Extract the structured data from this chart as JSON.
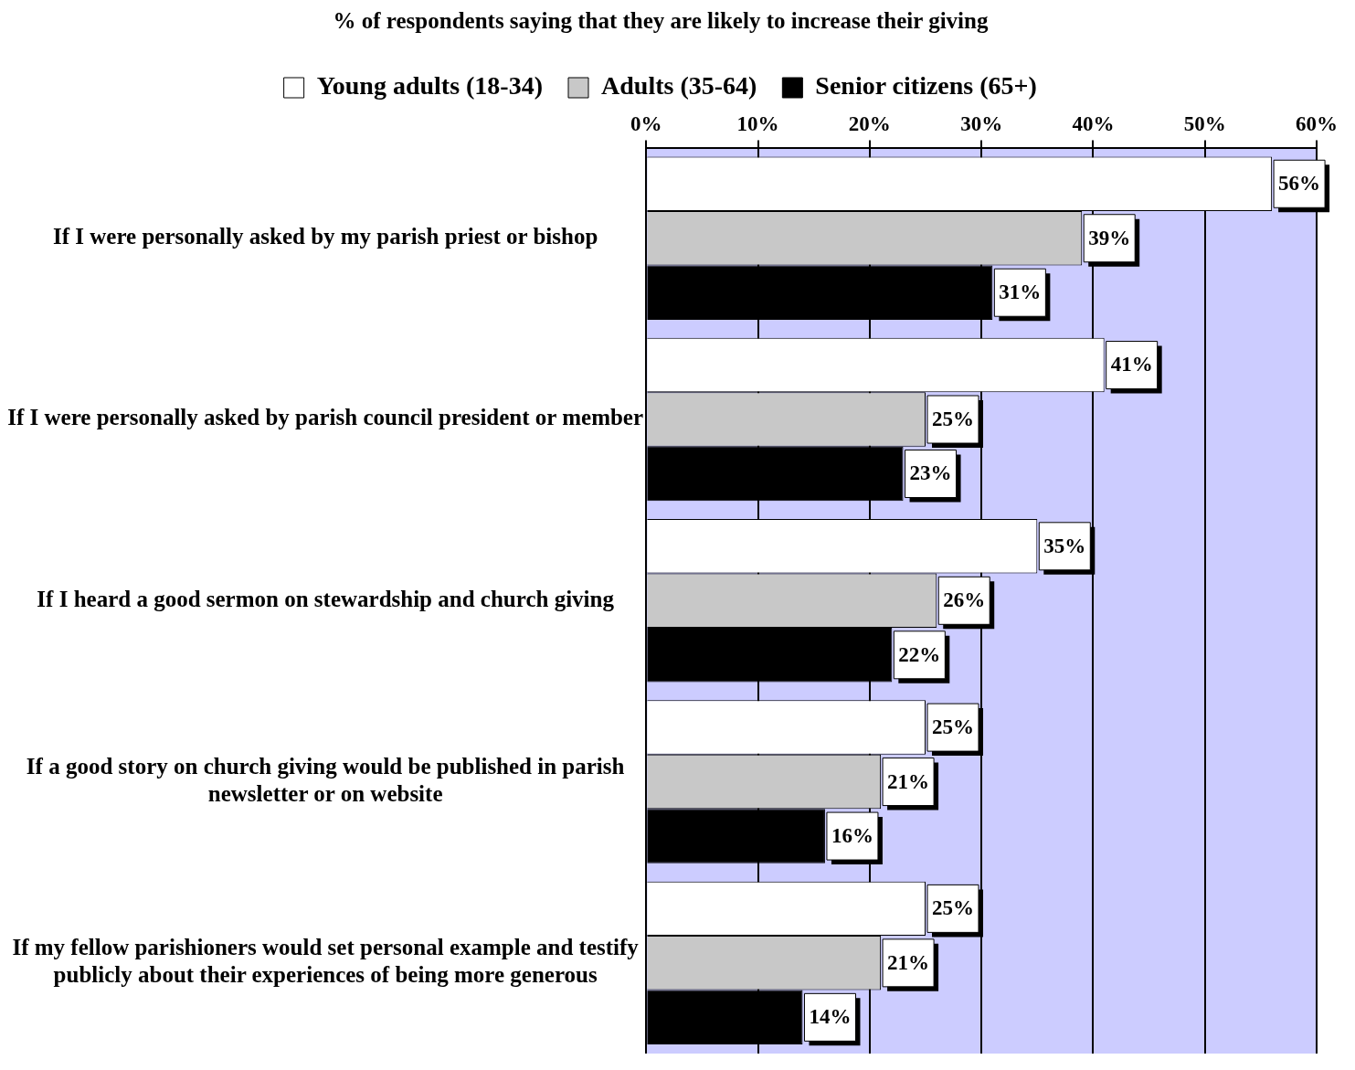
{
  "chart_data": {
    "type": "bar",
    "orientation": "horizontal",
    "title": "% of respondents saying that they are likely to increase their giving",
    "categories": [
      "If I were personally asked by my parish priest or bishop",
      "If I were personally asked by parish council president or member",
      "If I heard a good sermon on stewardship and church giving",
      "If a good story on church giving would be published in parish newsletter or on website",
      "If my fellow parishioners would set personal example and testify publicly about their experiences of being more generous"
    ],
    "series": [
      {
        "name": "Young adults (18-34)",
        "color": "#ffffff",
        "values": [
          56,
          41,
          35,
          25,
          25
        ],
        "value_labels": [
          "56%",
          "41%",
          "35%",
          "25%",
          "25%"
        ]
      },
      {
        "name": "Adults (35-64)",
        "color": "#c8c8c8",
        "values": [
          39,
          25,
          26,
          21,
          21
        ],
        "value_labels": [
          "39%",
          "25%",
          "26%",
          "21%",
          "21%"
        ]
      },
      {
        "name": "Senior citizens (65+)",
        "color": "#000000",
        "values": [
          31,
          23,
          22,
          16,
          14
        ],
        "value_labels": [
          "31%",
          "23%",
          "22%",
          "16%",
          "14%"
        ]
      }
    ],
    "xlim": [
      0,
      60
    ],
    "xticks": [
      {
        "value": 0,
        "label": "0%"
      },
      {
        "value": 10,
        "label": "10%"
      },
      {
        "value": 20,
        "label": "20%"
      },
      {
        "value": 30,
        "label": "30%"
      },
      {
        "value": 40,
        "label": "40%"
      },
      {
        "value": 50,
        "label": "50%"
      },
      {
        "value": 60,
        "label": "60%"
      }
    ],
    "grid": "x",
    "legend": "top"
  }
}
